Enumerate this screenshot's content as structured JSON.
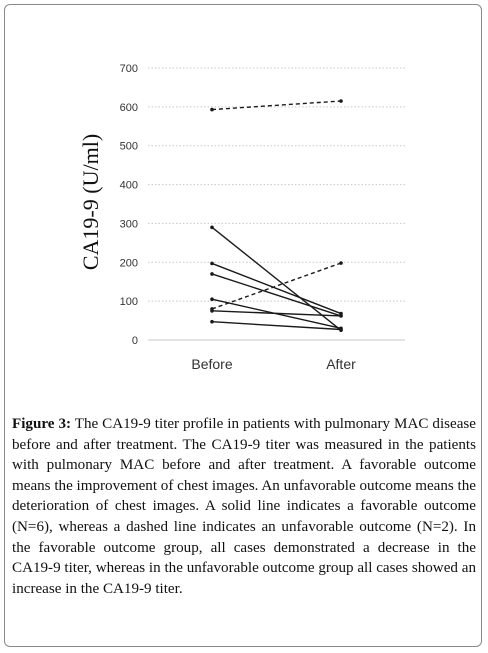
{
  "chart_data": {
    "type": "line",
    "categories": [
      "Before",
      "After"
    ],
    "ylabel": "CA19-9 (U/ml)",
    "ylim": [
      0,
      700
    ],
    "yticks": [
      0,
      100,
      200,
      300,
      400,
      500,
      600,
      700
    ],
    "grid": "horizontal-dotted",
    "series": [
      {
        "group": "favorable",
        "style": "solid",
        "values": [
          290,
          25
        ]
      },
      {
        "group": "favorable",
        "style": "solid",
        "values": [
          197,
          68
        ]
      },
      {
        "group": "favorable",
        "style": "solid",
        "values": [
          170,
          62
        ]
      },
      {
        "group": "favorable",
        "style": "solid",
        "values": [
          105,
          30
        ]
      },
      {
        "group": "favorable",
        "style": "solid",
        "values": [
          75,
          62
        ]
      },
      {
        "group": "favorable",
        "style": "solid",
        "values": [
          47,
          27
        ]
      },
      {
        "group": "unfavorable",
        "style": "dashed",
        "values": [
          593,
          615
        ]
      },
      {
        "group": "unfavorable",
        "style": "dashed",
        "values": [
          80,
          198
        ]
      }
    ],
    "line_color": "#1a1a1a"
  },
  "caption": {
    "label": "Figure 3:",
    "text": " The CA19-9 titer profile in patients with pulmonary MAC disease before and after treatment. The CA19-9 titer was measured in the patients with pulmonary MAC before and after treatment. A favorable outcome means the improvement of chest images. An unfavorable outcome means the deterioration of chest images. A solid line indicates a favorable outcome (N=6), whereas a dashed line indicates an unfavorable outcome (N=2). In the favorable outcome group, all cases demonstrated a decrease in the CA19-9 titer, whereas in the unfavorable outcome group all cases showed an increase in the CA19-9 titer."
  }
}
